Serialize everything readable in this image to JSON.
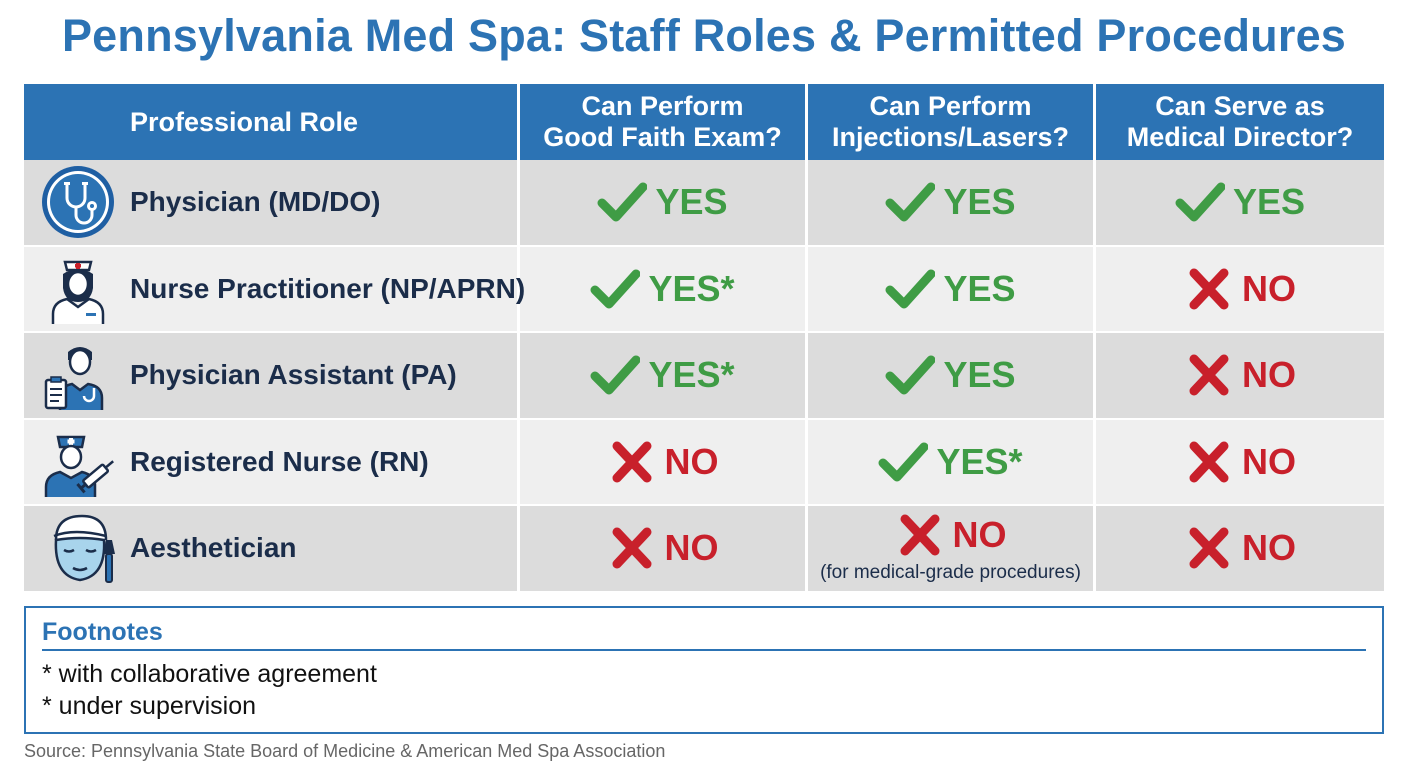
{
  "title": "Pennsylvania Med Spa: Staff Roles & Permitted Procedures",
  "headers": [
    "Professional Role",
    "Can Perform\nGood Faith Exam?",
    "Can Perform\nInjections/Lasers?",
    "Can Serve as\nMedical Director?"
  ],
  "rows": [
    {
      "role": "Physician (MD/DO)",
      "icon": "stethoscope-icon",
      "cells": [
        {
          "status": "yes",
          "text": "YES"
        },
        {
          "status": "yes",
          "text": "YES"
        },
        {
          "status": "yes",
          "text": "YES"
        }
      ]
    },
    {
      "role": "Nurse Practitioner (NP/APRN)",
      "icon": "nurse-practitioner-icon",
      "cells": [
        {
          "status": "yes",
          "text": "YES*"
        },
        {
          "status": "yes",
          "text": "YES"
        },
        {
          "status": "no",
          "text": "NO"
        }
      ]
    },
    {
      "role": "Physician Assistant (PA)",
      "icon": "physician-assistant-icon",
      "cells": [
        {
          "status": "yes",
          "text": "YES*"
        },
        {
          "status": "yes",
          "text": "YES"
        },
        {
          "status": "no",
          "text": "NO"
        }
      ]
    },
    {
      "role": "Registered Nurse (RN)",
      "icon": "nurse-syringe-icon",
      "cells": [
        {
          "status": "no",
          "text": "NO"
        },
        {
          "status": "yes",
          "text": "YES*"
        },
        {
          "status": "no",
          "text": "NO"
        }
      ]
    },
    {
      "role": "Aesthetician",
      "icon": "facial-mask-brush-icon",
      "cells": [
        {
          "status": "no",
          "text": "NO"
        },
        {
          "status": "no",
          "text": "NO",
          "note": "(for medical-grade procedures)"
        },
        {
          "status": "no",
          "text": "NO"
        }
      ]
    }
  ],
  "footnotes": {
    "title": "Footnotes",
    "items": [
      "* with collaborative agreement",
      "* under supervision"
    ]
  },
  "source": "Source: Pennsylvania State Board of Medicine & American Med Spa Association",
  "colors": {
    "accent": "#2c73b4",
    "yes": "#3f9c45",
    "no": "#c8202b",
    "row_shade": "#dcdcdc",
    "row_light": "#efefef",
    "text": "#1b2d4a"
  }
}
